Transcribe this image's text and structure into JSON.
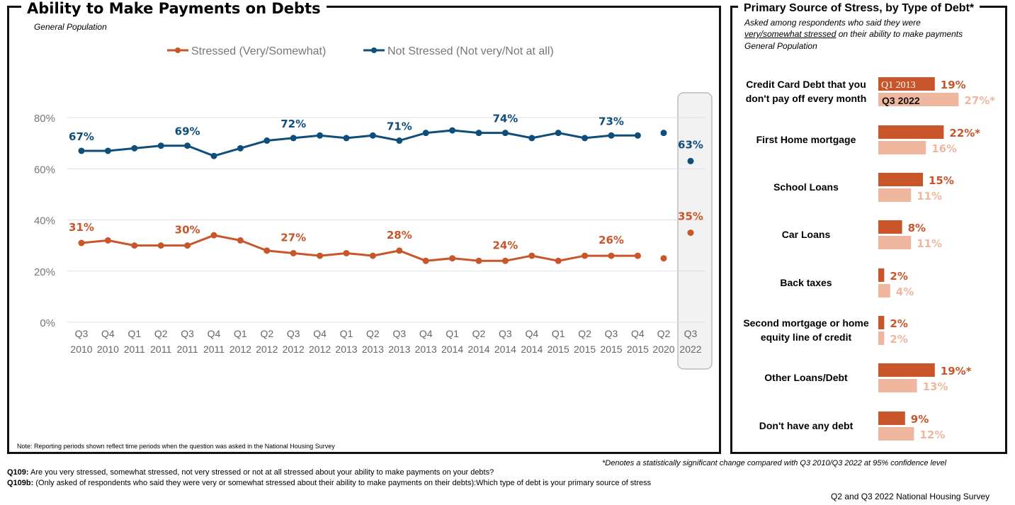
{
  "chart_data": [
    {
      "type": "line",
      "title": "Ability to Make Payments on Debts",
      "subtitle": "General Population",
      "categories": [
        [
          "Q3",
          "2010"
        ],
        [
          "Q4",
          "2010"
        ],
        [
          "Q1",
          "2011"
        ],
        [
          "Q2",
          "2011"
        ],
        [
          "Q3",
          "2011"
        ],
        [
          "Q4",
          "2011"
        ],
        [
          "Q1",
          "2012"
        ],
        [
          "Q2",
          "2012"
        ],
        [
          "Q3",
          "2012"
        ],
        [
          "Q4",
          "2012"
        ],
        [
          "Q1",
          "2013"
        ],
        [
          "Q2",
          "2013"
        ],
        [
          "Q3",
          "2013"
        ],
        [
          "Q4",
          "2013"
        ],
        [
          "Q1",
          "2014"
        ],
        [
          "Q2",
          "2014"
        ],
        [
          "Q3",
          "2014"
        ],
        [
          "Q4",
          "2014"
        ],
        [
          "Q1",
          "2015"
        ],
        [
          "Q2",
          "2015"
        ],
        [
          "Q3",
          "2015"
        ],
        [
          "Q4",
          "2015"
        ],
        [
          "Q2",
          "2020"
        ],
        [
          "Q3",
          "2022"
        ]
      ],
      "yticks": [
        "0%",
        "20%",
        "40%",
        "60%",
        "80%"
      ],
      "ylim": [
        0,
        80
      ],
      "grid": true,
      "legend": "top",
      "labeled_indices": [
        0,
        4,
        8,
        12,
        16,
        20,
        23
      ],
      "series": [
        {
          "name": "Stressed (Very/Somewhat)",
          "color": "#c8562a",
          "values": [
            31,
            32,
            30,
            30,
            30,
            34,
            32,
            28,
            27,
            26,
            27,
            26,
            28,
            24,
            25,
            24,
            24,
            26,
            24,
            26,
            26,
            26,
            25,
            35
          ]
        },
        {
          "name": "Not Stressed (Not very/Not at all)",
          "color": "#0f4e7a",
          "values": [
            67,
            67,
            68,
            69,
            69,
            65,
            68,
            71,
            72,
            73,
            72,
            73,
            71,
            74,
            75,
            74,
            74,
            72,
            74,
            72,
            73,
            73,
            74,
            63
          ]
        }
      ],
      "note": "Note: Reporting periods shown reflect time periods when the question was asked in the National Housing Survey"
    },
    {
      "type": "bar",
      "title": "Primary Source of Stress, by Type of Debt*",
      "subtitle_1": "Asked among respondents who said they were",
      "subtitle_underlined": "very/somewhat stressed",
      "subtitle_2": " on their ability to make payments",
      "subtitle_3": "General Population",
      "series": [
        {
          "name": "Q1 2013",
          "color": "#c8562a"
        },
        {
          "name": "Q3 2022",
          "color": "#f0b7a0"
        }
      ],
      "categories": [
        {
          "label": "Credit Card Debt that you don't pay off every month",
          "q1_2013": 19,
          "q3_2022": 27,
          "q1_label": "19%",
          "q3_label": "27%*"
        },
        {
          "label": "First Home mortgage",
          "q1_2013": 22,
          "q3_2022": 16,
          "q1_label": "22%*",
          "q3_label": "16%"
        },
        {
          "label": "School Loans",
          "q1_2013": 15,
          "q3_2022": 11,
          "q1_label": "15%",
          "q3_label": "11%"
        },
        {
          "label": "Car Loans",
          "q1_2013": 8,
          "q3_2022": 11,
          "q1_label": "8%",
          "q3_label": "11%"
        },
        {
          "label": "Back taxes",
          "q1_2013": 2,
          "q3_2022": 4,
          "q1_label": "2%",
          "q3_label": "4%"
        },
        {
          "label": "Second mortgage or home equity line of credit",
          "q1_2013": 2,
          "q3_2022": 2,
          "q1_label": "2%",
          "q3_label": "2%"
        },
        {
          "label": "Other Loans/Debt",
          "q1_2013": 19,
          "q3_2022": 13,
          "q1_label": "19%*",
          "q3_label": "13%"
        },
        {
          "label": "Don't have any debt",
          "q1_2013": 9,
          "q3_2022": 12,
          "q1_label": "9%",
          "q3_label": "12%"
        }
      ]
    }
  ],
  "footer": {
    "significance": "*Denotes a statistically significant change compared with Q3 2010/Q3 2022 at 95% confidence level",
    "q109_label": "Q109:",
    "q109": " Are you very stressed, somewhat stressed, not very stressed or not at all stressed about your ability to make payments on your debts?",
    "q109b_label": "Q109b:",
    "q109b": " (Only asked of respondents who said they were very or somewhat stressed about their ability to make payments on their debts):Which type of debt is your primary source of stress",
    "source": "Q2 and Q3 2022 National Housing Survey"
  }
}
